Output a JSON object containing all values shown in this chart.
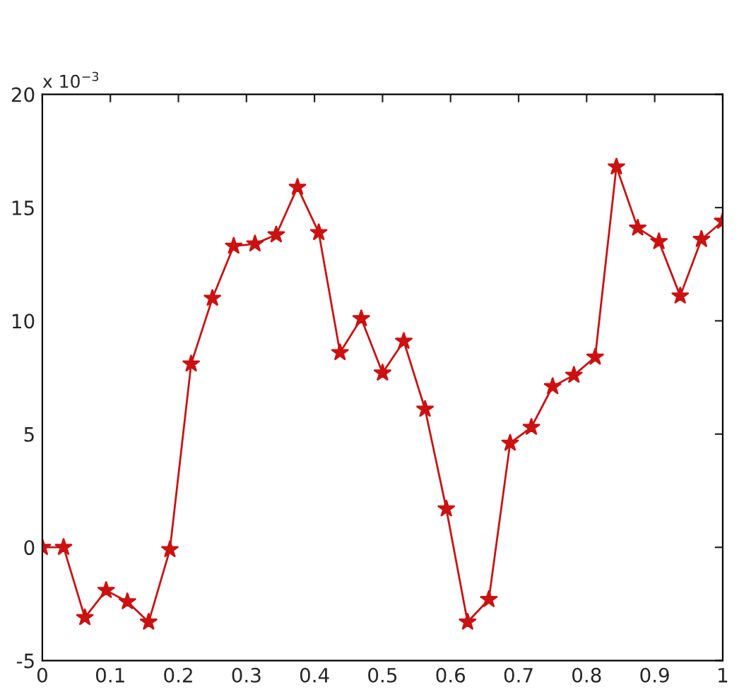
{
  "chart_data": {
    "type": "line",
    "x": [
      0,
      0.03125,
      0.0625,
      0.09375,
      0.125,
      0.15625,
      0.1875,
      0.21875,
      0.25,
      0.28125,
      0.3125,
      0.34375,
      0.375,
      0.40625,
      0.4375,
      0.46875,
      0.5,
      0.53125,
      0.5625,
      0.59375,
      0.625,
      0.65625,
      0.6875,
      0.71875,
      0.75,
      0.78125,
      0.8125,
      0.84375,
      0.875,
      0.90625,
      0.9375,
      0.96875,
      1.0
    ],
    "series": [
      {
        "color": "#cc1111",
        "values": [
          0,
          0.0,
          -3.1,
          -1.9,
          -2.4,
          -3.3,
          -0.1,
          8.1,
          11.0,
          13.3,
          13.4,
          13.8,
          15.9,
          13.9,
          8.6,
          10.1,
          7.7,
          9.1,
          6.1,
          1.7,
          -3.3,
          -2.3,
          4.6,
          5.3,
          7.1,
          7.6,
          8.4,
          16.8,
          14.1,
          13.5,
          11.1,
          13.6,
          14.4
        ]
      }
    ],
    "xlim": [
      0,
      1
    ],
    "xticks": [
      0,
      0.1,
      0.2,
      0.3,
      0.4,
      0.5,
      0.6,
      0.7,
      0.8,
      0.9,
      1
    ],
    "ylim": [
      -5,
      20
    ],
    "yticks": [
      -5,
      0,
      5,
      10,
      15,
      20
    ],
    "annotations": [
      "x 10$^{−3}$"
    ],
    "marker": "star",
    "line_style": "solid",
    "grid": false,
    "legend": false
  }
}
